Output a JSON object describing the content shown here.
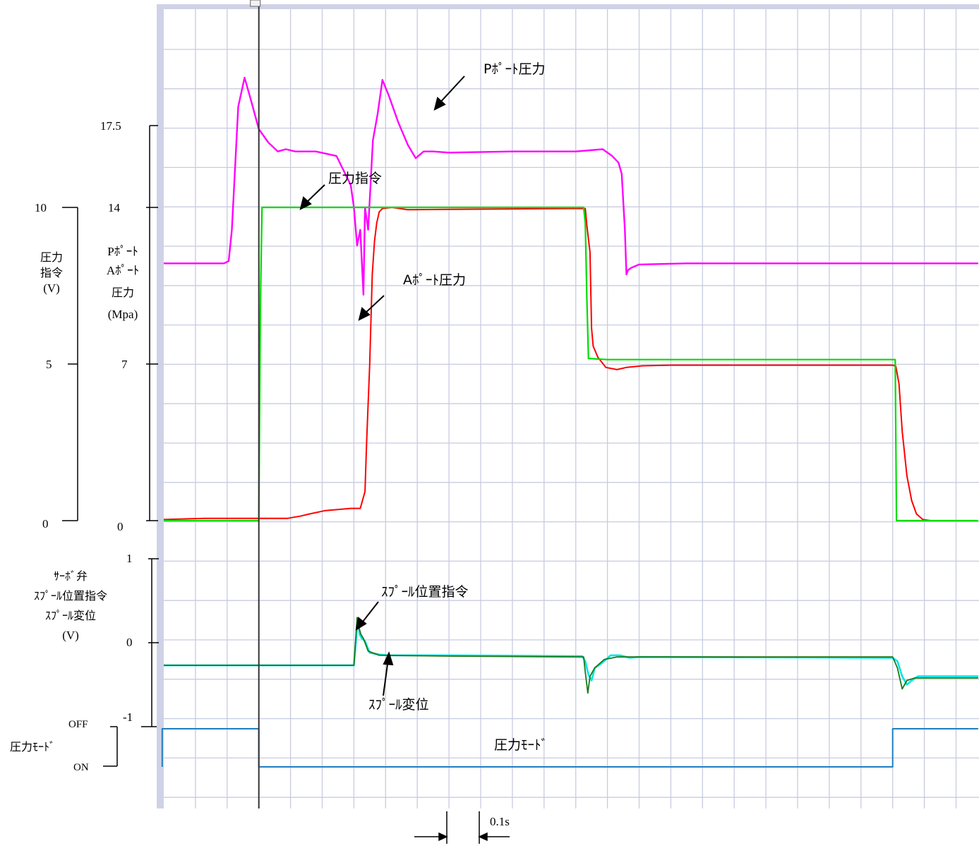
{
  "chart_data": {
    "type": "line",
    "x_unit_label": "0.1s",
    "panels": {
      "pressure": {
        "left_axis_ticks": [
          "10",
          "5",
          "0"
        ],
        "left_axis_values": [
          10,
          5,
          0
        ],
        "right_axis_ticks": [
          "17.5",
          "14",
          "7",
          "0"
        ],
        "right_axis_values": [
          17.5,
          14,
          7,
          0
        ],
        "left_axis_label": [
          "圧力",
          "指令",
          "(V)"
        ],
        "right_axis_label": [
          "Pﾎﾟｰﾄ",
          "Aﾎﾟｰﾄ",
          "圧力",
          "(Mpa)"
        ],
        "ylim": [
          0,
          20
        ]
      },
      "spool": {
        "axis_ticks": [
          "1",
          "0",
          "-1"
        ],
        "axis_values": [
          1,
          0,
          -1
        ],
        "axis_label": [
          "ｻｰﾎﾞ弁",
          "ｽﾌﾟｰﾙ位置指令",
          "ｽﾌﾟｰﾙ変位",
          "(V)"
        ],
        "ylim": [
          -1.5,
          1
        ]
      },
      "mode": {
        "axis_label": "圧力ﾓｰﾄﾞ",
        "off_label": "OFF",
        "on_label": "ON"
      }
    },
    "series": [
      {
        "name": "Pﾎﾟｰﾄ圧力",
        "color": "#ff00ff",
        "points": [
          [
            0,
            11.5
          ],
          [
            1.9,
            11.5
          ],
          [
            2.05,
            11.6
          ],
          [
            2.15,
            13
          ],
          [
            2.35,
            18.5
          ],
          [
            2.55,
            19.8
          ],
          [
            2.75,
            18.8
          ],
          [
            3,
            17.5
          ],
          [
            3.3,
            16.9
          ],
          [
            3.6,
            16.5
          ],
          [
            3.85,
            16.6
          ],
          [
            4.15,
            16.5
          ],
          [
            4.8,
            16.5
          ],
          [
            5.45,
            16.3
          ],
          [
            5.9,
            15
          ],
          [
            6.0,
            14
          ],
          [
            6.1,
            12.3
          ],
          [
            6.2,
            13
          ],
          [
            6.3,
            10.1
          ],
          [
            6.35,
            14
          ],
          [
            6.45,
            13
          ],
          [
            6.6,
            17
          ],
          [
            6.75,
            18.2
          ],
          [
            6.9,
            19.7
          ],
          [
            7.1,
            19
          ],
          [
            7.4,
            17.8
          ],
          [
            7.7,
            16.8
          ],
          [
            7.95,
            16.2
          ],
          [
            8.2,
            16.5
          ],
          [
            8.5,
            16.5
          ],
          [
            9,
            16.45
          ],
          [
            11,
            16.5
          ],
          [
            13,
            16.5
          ],
          [
            13.85,
            16.6
          ],
          [
            14.15,
            16.3
          ],
          [
            14.35,
            16
          ],
          [
            14.45,
            15.5
          ],
          [
            14.55,
            13
          ],
          [
            14.6,
            11
          ],
          [
            14.65,
            11.2
          ],
          [
            14.75,
            11.3
          ],
          [
            15,
            11.45
          ],
          [
            16.5,
            11.5
          ],
          [
            18,
            11.5
          ],
          [
            22.5,
            11.5
          ],
          [
            25.7,
            11.5
          ]
        ]
      },
      {
        "name": "Aﾎﾟｰﾄ圧力",
        "color": "#ff0000",
        "points": [
          [
            0,
            0.05
          ],
          [
            1.3,
            0.1
          ],
          [
            3,
            0.1
          ],
          [
            3.9,
            0.1
          ],
          [
            4.1,
            0.15
          ],
          [
            4.3,
            0.2
          ],
          [
            4.6,
            0.3
          ],
          [
            5.1,
            0.45
          ],
          [
            5.9,
            0.55
          ],
          [
            6.2,
            0.55
          ],
          [
            6.35,
            1.3
          ],
          [
            6.4,
            3.5
          ],
          [
            6.5,
            7
          ],
          [
            6.58,
            11
          ],
          [
            6.65,
            12.5
          ],
          [
            6.72,
            13.3
          ],
          [
            6.8,
            13.8
          ],
          [
            6.9,
            13.95
          ],
          [
            7.2,
            14
          ],
          [
            7.7,
            13.9
          ],
          [
            12.8,
            13.95
          ],
          [
            13.3,
            13.95
          ],
          [
            13.35,
            13.2
          ],
          [
            13.45,
            12
          ],
          [
            13.5,
            8.6
          ],
          [
            13.55,
            7.8
          ],
          [
            13.7,
            7.3
          ],
          [
            13.95,
            6.85
          ],
          [
            14.3,
            6.75
          ],
          [
            14.6,
            6.85
          ],
          [
            15.1,
            6.92
          ],
          [
            16,
            6.95
          ],
          [
            23,
            6.95
          ],
          [
            23.1,
            6.9
          ],
          [
            23.2,
            6.1
          ],
          [
            23.3,
            4
          ],
          [
            23.45,
            2
          ],
          [
            23.6,
            0.9
          ],
          [
            23.75,
            0.3
          ],
          [
            23.95,
            0.05
          ],
          [
            24.2,
            0
          ]
        ]
      },
      {
        "name": "圧力指令",
        "color": "#00dd00",
        "points": [
          [
            0,
            0
          ],
          [
            3,
            0
          ],
          [
            3.05,
            9.5
          ],
          [
            3.1,
            14
          ],
          [
            13.25,
            14
          ],
          [
            13.3,
            13.3
          ],
          [
            13.35,
            10
          ],
          [
            13.4,
            7.25
          ],
          [
            14,
            7.2
          ],
          [
            23,
            7.2
          ],
          [
            23.08,
            7.2
          ],
          [
            23.12,
            0
          ],
          [
            25.7,
            0
          ]
        ]
      },
      {
        "name": "ｽﾌﾟｰﾙ変位",
        "color": "#00e5e5",
        "points": [
          [
            0,
            -0.27
          ],
          [
            6,
            -0.27
          ],
          [
            6.05,
            -0.05
          ],
          [
            6.12,
            0.28
          ],
          [
            6.18,
            0.1
          ],
          [
            6.25,
            0.05
          ],
          [
            6.35,
            0.02
          ],
          [
            6.5,
            -0.12
          ],
          [
            6.8,
            -0.14
          ],
          [
            7.1,
            -0.15
          ],
          [
            9,
            -0.15
          ],
          [
            13.2,
            -0.16
          ],
          [
            13.3,
            -0.22
          ],
          [
            13.4,
            -0.38
          ],
          [
            13.5,
            -0.45
          ],
          [
            13.6,
            -0.3
          ],
          [
            13.8,
            -0.25
          ],
          [
            14.1,
            -0.15
          ],
          [
            14.4,
            -0.15
          ],
          [
            14.7,
            -0.18
          ],
          [
            15,
            -0.17
          ],
          [
            23,
            -0.18
          ],
          [
            23.15,
            -0.22
          ],
          [
            23.3,
            -0.4
          ],
          [
            23.45,
            -0.5
          ],
          [
            23.6,
            -0.45
          ],
          [
            23.8,
            -0.4
          ],
          [
            25.7,
            -0.4
          ]
        ]
      },
      {
        "name": "ｽﾌﾟｰﾙ位置指令",
        "color": "#1a7a1a",
        "points": [
          [
            0,
            -0.27
          ],
          [
            6,
            -0.27
          ],
          [
            6.05,
            0
          ],
          [
            6.1,
            0.3
          ],
          [
            6.16,
            0.18
          ],
          [
            6.22,
            0.1
          ],
          [
            6.3,
            0.05
          ],
          [
            6.45,
            -0.1
          ],
          [
            6.8,
            -0.15
          ],
          [
            9,
            -0.16
          ],
          [
            13.25,
            -0.17
          ],
          [
            13.3,
            -0.35
          ],
          [
            13.38,
            -0.6
          ],
          [
            13.45,
            -0.4
          ],
          [
            13.6,
            -0.3
          ],
          [
            13.9,
            -0.2
          ],
          [
            14.3,
            -0.17
          ],
          [
            15,
            -0.17
          ],
          [
            23,
            -0.17
          ],
          [
            23.15,
            -0.3
          ],
          [
            23.3,
            -0.55
          ],
          [
            23.45,
            -0.45
          ],
          [
            23.7,
            -0.42
          ],
          [
            25.7,
            -0.42
          ]
        ]
      },
      {
        "name": "圧力ﾓｰﾄﾞ",
        "color": "#1e7fc0",
        "points": [
          [
            -0.05,
            "ON"
          ],
          [
            -0.05,
            "OFF"
          ],
          [
            3,
            "OFF"
          ],
          [
            3,
            "ON"
          ],
          [
            23,
            "ON"
          ],
          [
            23,
            "OFF"
          ],
          [
            25.7,
            "OFF"
          ]
        ]
      }
    ],
    "annotations": [
      "Pﾎﾟｰﾄ圧力",
      "圧力指令",
      "Aﾎﾟｰﾄ圧力",
      "ｽﾌﾟｰﾙ位置指令",
      "ｽﾌﾟｰﾙ変位",
      "圧力ﾓｰﾄﾞ"
    ],
    "grid": true,
    "cursor_x": 3
  }
}
